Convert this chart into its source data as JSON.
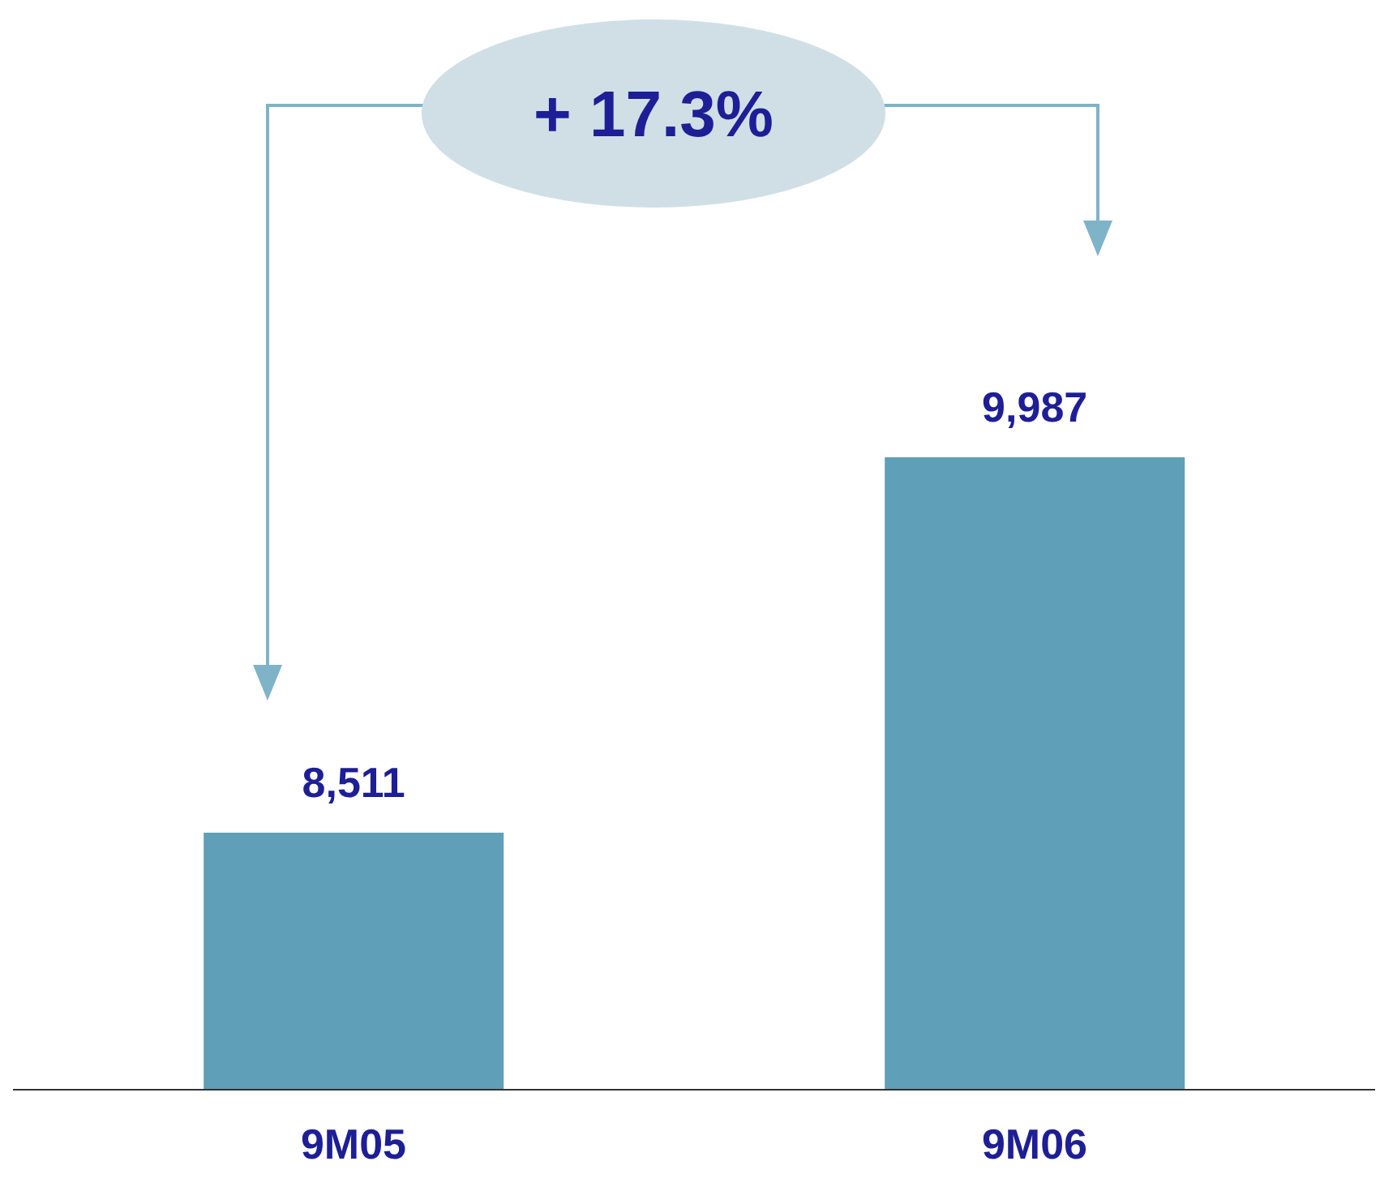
{
  "chart_data": {
    "type": "bar",
    "categories": [
      "9M05",
      "9M06"
    ],
    "values": [
      8511,
      9987
    ],
    "value_labels": [
      "8,511",
      "9,987"
    ],
    "color": "#5f9fb8",
    "tick_labels": "x",
    "ylim": [
      7500,
      9987
    ],
    "annotations": [
      "+ 17.3%"
    ]
  }
}
